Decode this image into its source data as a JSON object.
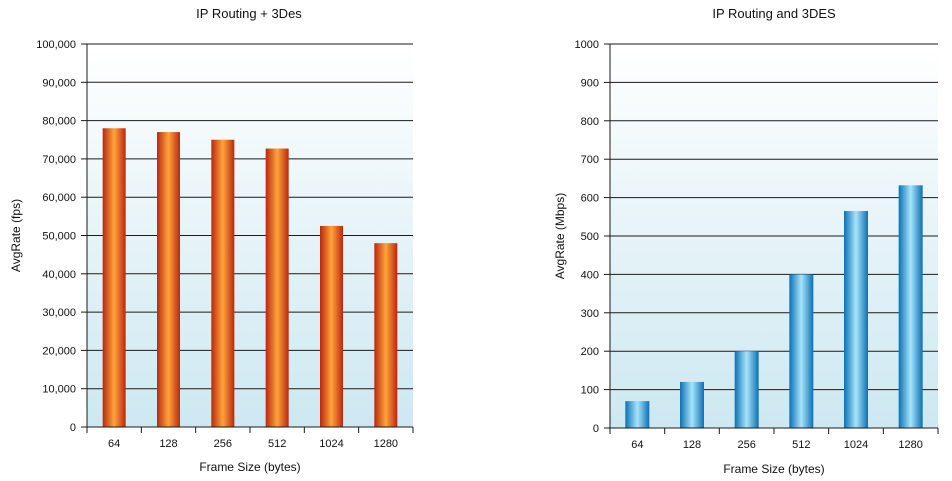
{
  "colors": {
    "left_bar_edge": "#b8280f",
    "left_bar_mid": "#ffa43a",
    "right_bar_edge": "#0b71b3",
    "right_bar_mid": "#a7e4fb",
    "plot_bg_top": "#ffffff",
    "plot_bg_bottom": "#cde8f1"
  },
  "chart_data": [
    {
      "type": "bar",
      "title": "IP Routing + 3Des",
      "xlabel": "Frame Size (bytes)",
      "ylabel": "AvgRate (fps)",
      "categories": [
        "64",
        "128",
        "256",
        "512",
        "1024",
        "1280"
      ],
      "values": [
        78000,
        77000,
        75000,
        72700,
        52500,
        48000
      ],
      "ylim": [
        0,
        100000
      ],
      "yticks": [
        0,
        10000,
        20000,
        30000,
        40000,
        50000,
        60000,
        70000,
        80000,
        90000,
        100000
      ],
      "ytick_labels": [
        "0",
        "10,000",
        "20,000",
        "30,000",
        "40,000",
        "50,000",
        "60,000",
        "70,000",
        "80,000",
        "90,000",
        "100,000"
      ],
      "grid": true,
      "legend": "none"
    },
    {
      "type": "bar",
      "title": "IP Routing and 3DES",
      "xlabel": "Frame Size (bytes)",
      "ylabel": "AvgRate (Mbps)",
      "categories": [
        "64",
        "128",
        "256",
        "512",
        "1024",
        "1280"
      ],
      "values": [
        70,
        120,
        200,
        400,
        565,
        632
      ],
      "ylim": [
        0,
        1000
      ],
      "yticks": [
        0,
        100,
        200,
        300,
        400,
        500,
        600,
        700,
        800,
        900,
        1000
      ],
      "ytick_labels": [
        "0",
        "100",
        "200",
        "300",
        "400",
        "500",
        "600",
        "700",
        "800",
        "900",
        "1000"
      ],
      "grid": true,
      "legend": "none"
    }
  ]
}
